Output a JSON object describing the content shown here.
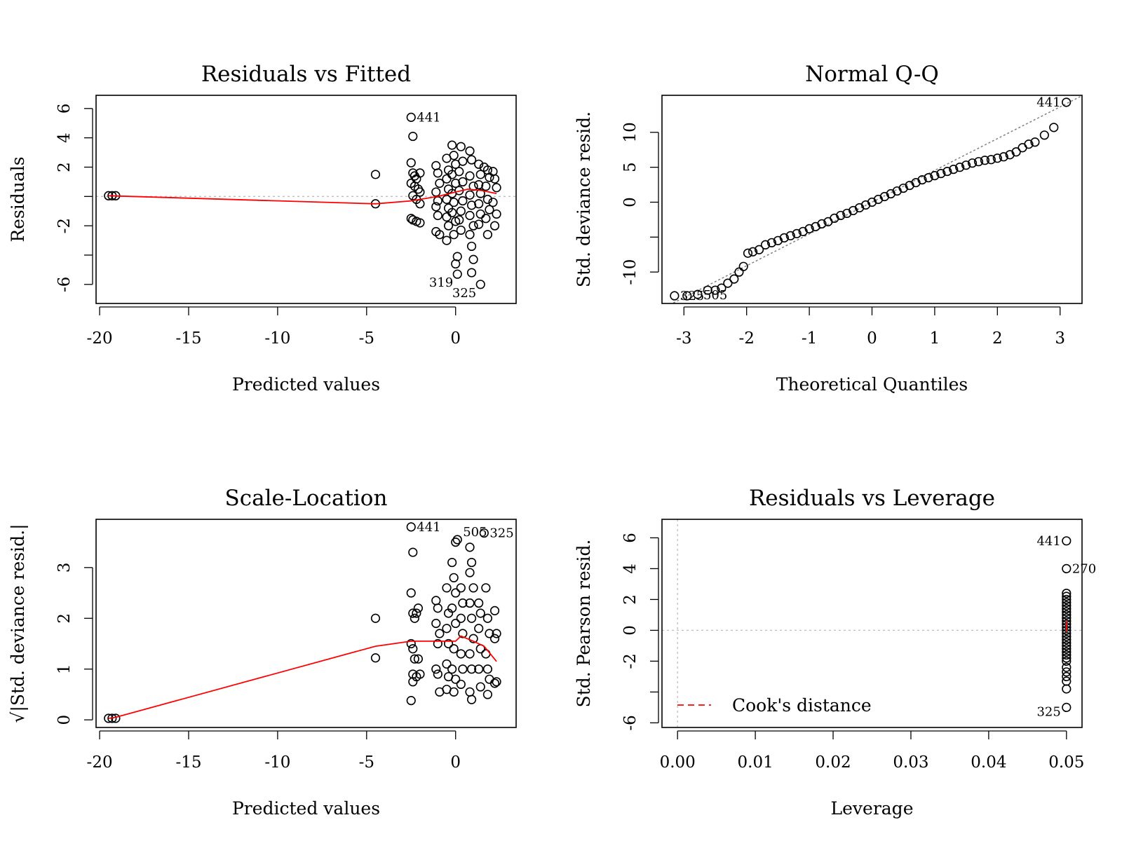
{
  "colors": {
    "point": "#000000",
    "smooth": "#ff0000",
    "reference": "#bebebe",
    "qqline": "#808080",
    "cook": "#ff0000"
  },
  "panels": [
    {
      "title": "Residuals vs Fitted",
      "xlabel": "Predicted values",
      "ylabel": "Residuals",
      "xticks": [
        -20,
        -15,
        -10,
        -5,
        0
      ],
      "yticks": [
        -6,
        -4,
        -2,
        0,
        2,
        4,
        6
      ],
      "yticklabels": [
        "-6",
        "",
        "-2",
        "",
        "2",
        "4",
        "6"
      ],
      "point_labels": [
        {
          "text": "441",
          "x": -2.5,
          "y": 5.4
        },
        {
          "text": "319",
          "x": 0.1,
          "y": -5.3
        },
        {
          "text": "325",
          "x": 1.4,
          "y": -6.0
        }
      ]
    },
    {
      "title": "Normal Q-Q",
      "xlabel": "Theoretical Quantiles",
      "ylabel": "Std. deviance resid.",
      "xticks": [
        -3,
        -2,
        -1,
        0,
        1,
        2,
        3
      ],
      "yticks": [
        -10,
        -5,
        0,
        5,
        10
      ],
      "yticklabels": [
        "-10",
        "",
        "0",
        "5",
        "10"
      ],
      "point_labels": [
        {
          "text": "441",
          "x": 3.1,
          "y": 14.3
        },
        {
          "text": "325",
          "x": -3.15,
          "y": -13.4
        },
        {
          "text": "505",
          "x": -2.78,
          "y": -13.3
        }
      ]
    },
    {
      "title": "Scale-Location",
      "xlabel": "Predicted values",
      "ylabel": "√|Std. deviance resid.|",
      "xticks": [
        -20,
        -15,
        -10,
        -5,
        0
      ],
      "yticks": [
        0,
        1,
        2,
        3
      ],
      "yticklabels": [
        "0",
        "1",
        "2",
        "3"
      ],
      "point_labels": [
        {
          "text": "441",
          "x": -2.5,
          "y": 3.8
        },
        {
          "text": "505",
          "x": 0.1,
          "y": 3.7
        },
        {
          "text": "325",
          "x": 1.6,
          "y": 3.68
        }
      ]
    },
    {
      "title": "Residuals vs Leverage",
      "xlabel": "Leverage",
      "ylabel": "Std. Pearson resid.",
      "xticks": [
        0.0,
        0.01,
        0.02,
        0.03,
        0.04,
        0.05
      ],
      "xticklabels": [
        "0.00",
        "0.01",
        "0.02",
        "0.03",
        "0.04",
        "0.05"
      ],
      "yticks": [
        -6,
        -4,
        -2,
        0,
        2,
        4,
        6
      ],
      "yticklabels": [
        "-6",
        "",
        "-2",
        "0",
        "2",
        "4",
        "6"
      ],
      "legend": "Cook's distance",
      "point_labels": [
        {
          "text": "441",
          "x": 0.05,
          "y": 5.8
        },
        {
          "text": "270",
          "x": 0.05,
          "y": 4.0
        },
        {
          "text": "325",
          "x": 0.05,
          "y": -5.0
        }
      ]
    }
  ],
  "chart_data": [
    {
      "type": "scatter",
      "title": "Residuals vs Fitted",
      "xlabel": "Predicted values",
      "ylabel": "Residuals",
      "xlim": [
        -20.2,
        3.4
      ],
      "ylim": [
        -7.3,
        6.9
      ],
      "reference_line_y": 0,
      "points": [
        [
          -19.5,
          0.05
        ],
        [
          -19.3,
          0.05
        ],
        [
          -19.1,
          0.05
        ],
        [
          -4.5,
          1.5
        ],
        [
          -4.5,
          -0.5
        ],
        [
          -2.5,
          5.4
        ],
        [
          -2.4,
          4.1
        ],
        [
          -2.5,
          2.3
        ],
        [
          -2.4,
          1.6
        ],
        [
          -2.3,
          1.4
        ],
        [
          -2.2,
          1.2
        ],
        [
          -2.0,
          1.6
        ],
        [
          -2.5,
          0.9
        ],
        [
          -2.3,
          0.7
        ],
        [
          -2.1,
          0.5
        ],
        [
          -2.0,
          0.3
        ],
        [
          -2.4,
          0.05
        ],
        [
          -2.2,
          -0.2
        ],
        [
          -2.0,
          -0.5
        ],
        [
          -2.5,
          -1.5
        ],
        [
          -2.4,
          -1.6
        ],
        [
          -2.2,
          -1.7
        ],
        [
          -2.0,
          -1.8
        ],
        [
          -1.1,
          2.1
        ],
        [
          -1.0,
          1.6
        ],
        [
          -0.9,
          0.9
        ],
        [
          -1.1,
          0.3
        ],
        [
          -1.0,
          -0.3
        ],
        [
          -1.1,
          -0.7
        ],
        [
          -1.0,
          -1.3
        ],
        [
          -1.1,
          -2.4
        ],
        [
          -0.9,
          -2.6
        ],
        [
          -0.5,
          2.6
        ],
        [
          -0.4,
          1.8
        ],
        [
          -0.5,
          1.2
        ],
        [
          -0.4,
          0.5
        ],
        [
          -0.5,
          -0.2
        ],
        [
          -0.4,
          -0.8
        ],
        [
          -0.5,
          -1.4
        ],
        [
          -0.4,
          -2.0
        ],
        [
          -0.5,
          -3.0
        ],
        [
          -0.2,
          3.5
        ],
        [
          -0.1,
          2.8
        ],
        [
          0.0,
          2.2
        ],
        [
          -0.2,
          1.5
        ],
        [
          0.0,
          0.9
        ],
        [
          -0.2,
          0.2
        ],
        [
          -0.1,
          -0.4
        ],
        [
          -0.2,
          -1.1
        ],
        [
          0.0,
          -1.7
        ],
        [
          -0.1,
          -2.6
        ],
        [
          0.1,
          -4.1
        ],
        [
          0.0,
          -4.6
        ],
        [
          0.1,
          -5.3
        ],
        [
          0.3,
          3.4
        ],
        [
          0.4,
          2.4
        ],
        [
          0.2,
          1.7
        ],
        [
          0.4,
          1.0
        ],
        [
          0.2,
          0.4
        ],
        [
          0.4,
          -0.3
        ],
        [
          0.3,
          -1.0
        ],
        [
          0.2,
          -1.6
        ],
        [
          0.3,
          -2.3
        ],
        [
          0.8,
          3.1
        ],
        [
          0.9,
          2.5
        ],
        [
          0.8,
          1.4
        ],
        [
          1.0,
          0.7
        ],
        [
          0.8,
          0.1
        ],
        [
          0.9,
          -0.6
        ],
        [
          0.8,
          -1.3
        ],
        [
          1.0,
          -2.0
        ],
        [
          0.8,
          -2.6
        ],
        [
          0.9,
          -3.4
        ],
        [
          1.0,
          -4.3
        ],
        [
          0.9,
          -5.2
        ],
        [
          1.3,
          2.2
        ],
        [
          1.4,
          1.5
        ],
        [
          1.3,
          0.8
        ],
        [
          1.4,
          0.2
        ],
        [
          1.3,
          -0.5
        ],
        [
          1.4,
          -1.2
        ],
        [
          1.3,
          -1.9
        ],
        [
          1.4,
          -6.0
        ],
        [
          1.6,
          2.0
        ],
        [
          1.8,
          1.8
        ],
        [
          1.9,
          1.3
        ],
        [
          1.7,
          0.7
        ],
        [
          1.8,
          -0.2
        ],
        [
          1.9,
          -0.9
        ],
        [
          1.7,
          -1.5
        ],
        [
          1.8,
          -2.6
        ],
        [
          2.1,
          1.7
        ],
        [
          2.2,
          1.2
        ],
        [
          2.3,
          0.6
        ],
        [
          2.1,
          -0.4
        ],
        [
          2.3,
          -1.2
        ],
        [
          2.2,
          -2.0
        ]
      ],
      "smooth_line": [
        [
          -19.5,
          0.05
        ],
        [
          -4.5,
          -0.5
        ],
        [
          -2.5,
          -0.3
        ],
        [
          -1.0,
          0.0
        ],
        [
          0.0,
          0.3
        ],
        [
          0.7,
          0.5
        ],
        [
          1.5,
          0.4
        ],
        [
          2.3,
          0.2
        ]
      ]
    },
    {
      "type": "scatter",
      "title": "Normal Q-Q",
      "xlabel": "Theoretical Quantiles",
      "ylabel": "Std. deviance resid.",
      "xlim": [
        -3.35,
        3.35
      ],
      "ylim": [
        -14.5,
        15.3
      ],
      "qq_line": {
        "intercept": 0.0,
        "slope": 4.55
      },
      "points": [
        [
          -3.15,
          -13.4
        ],
        [
          -2.95,
          -13.4
        ],
        [
          -2.78,
          -13.2
        ],
        [
          -2.62,
          -12.6
        ],
        [
          -2.5,
          -12.6
        ],
        [
          -2.4,
          -12.3
        ],
        [
          -2.3,
          -11.6
        ],
        [
          -2.2,
          -11.0
        ],
        [
          -2.12,
          -10.0
        ],
        [
          -2.05,
          -9.2
        ],
        [
          -1.98,
          -7.3
        ],
        [
          -1.9,
          -7.1
        ],
        [
          -1.8,
          -6.8
        ],
        [
          -1.7,
          -6.1
        ],
        [
          -1.6,
          -5.8
        ],
        [
          -1.5,
          -5.5
        ],
        [
          -1.4,
          -5.1
        ],
        [
          -1.3,
          -4.8
        ],
        [
          -1.2,
          -4.5
        ],
        [
          -1.1,
          -4.2
        ],
        [
          -1.0,
          -3.8
        ],
        [
          -0.9,
          -3.5
        ],
        [
          -0.8,
          -3.1
        ],
        [
          -0.7,
          -2.8
        ],
        [
          -0.6,
          -2.3
        ],
        [
          -0.5,
          -1.9
        ],
        [
          -0.4,
          -1.6
        ],
        [
          -0.3,
          -1.2
        ],
        [
          -0.2,
          -0.8
        ],
        [
          -0.1,
          -0.4
        ],
        [
          0.0,
          0.0
        ],
        [
          0.1,
          0.4
        ],
        [
          0.2,
          0.8
        ],
        [
          0.3,
          1.2
        ],
        [
          0.4,
          1.6
        ],
        [
          0.5,
          2.0
        ],
        [
          0.6,
          2.4
        ],
        [
          0.7,
          2.8
        ],
        [
          0.8,
          3.2
        ],
        [
          0.9,
          3.5
        ],
        [
          1.0,
          3.8
        ],
        [
          1.1,
          4.1
        ],
        [
          1.2,
          4.4
        ],
        [
          1.3,
          4.7
        ],
        [
          1.4,
          5.0
        ],
        [
          1.5,
          5.3
        ],
        [
          1.6,
          5.6
        ],
        [
          1.7,
          5.8
        ],
        [
          1.8,
          6.0
        ],
        [
          1.9,
          6.1
        ],
        [
          2.0,
          6.3
        ],
        [
          2.1,
          6.5
        ],
        [
          2.2,
          6.8
        ],
        [
          2.3,
          7.2
        ],
        [
          2.4,
          7.8
        ],
        [
          2.5,
          8.3
        ],
        [
          2.6,
          8.6
        ],
        [
          2.75,
          9.6
        ],
        [
          2.9,
          10.7
        ],
        [
          3.1,
          14.3
        ]
      ]
    },
    {
      "type": "scatter",
      "title": "Scale-Location",
      "xlabel": "Predicted values",
      "ylabel": "√|Std. deviance resid.|",
      "xlim": [
        -20.2,
        3.4
      ],
      "ylim": [
        -0.15,
        3.95
      ],
      "points": [
        [
          -19.5,
          0.03
        ],
        [
          -19.3,
          0.03
        ],
        [
          -19.1,
          0.03
        ],
        [
          -4.5,
          2.0
        ],
        [
          -4.5,
          1.22
        ],
        [
          -2.5,
          3.8
        ],
        [
          -2.4,
          3.3
        ],
        [
          -2.5,
          2.5
        ],
        [
          -2.4,
          2.1
        ],
        [
          -2.3,
          2.0
        ],
        [
          -2.2,
          2.1
        ],
        [
          -2.1,
          2.2
        ],
        [
          -2.5,
          1.5
        ],
        [
          -2.4,
          1.4
        ],
        [
          -2.3,
          1.2
        ],
        [
          -2.1,
          1.2
        ],
        [
          -2.4,
          0.9
        ],
        [
          -2.2,
          0.85
        ],
        [
          -2.0,
          0.9
        ],
        [
          -2.4,
          0.75
        ],
        [
          -2.5,
          0.38
        ],
        [
          -1.1,
          2.35
        ],
        [
          -1.0,
          2.2
        ],
        [
          -1.1,
          1.9
        ],
        [
          -0.9,
          1.7
        ],
        [
          -1.0,
          1.5
        ],
        [
          -1.1,
          1.0
        ],
        [
          -1.0,
          0.9
        ],
        [
          -0.9,
          0.55
        ],
        [
          -0.5,
          2.6
        ],
        [
          -0.4,
          2.1
        ],
        [
          -0.5,
          1.8
        ],
        [
          -0.4,
          1.5
        ],
        [
          -0.5,
          1.1
        ],
        [
          -0.4,
          0.85
        ],
        [
          -0.5,
          0.6
        ],
        [
          -0.2,
          3.1
        ],
        [
          -0.1,
          2.8
        ],
        [
          0.0,
          2.5
        ],
        [
          -0.2,
          2.2
        ],
        [
          0.0,
          1.9
        ],
        [
          -0.1,
          1.4
        ],
        [
          -0.2,
          1.0
        ],
        [
          0.0,
          0.8
        ],
        [
          -0.1,
          0.55
        ],
        [
          0.1,
          3.55
        ],
        [
          0.0,
          3.5
        ],
        [
          0.3,
          2.6
        ],
        [
          0.4,
          2.3
        ],
        [
          0.3,
          2.0
        ],
        [
          0.4,
          1.7
        ],
        [
          0.3,
          1.3
        ],
        [
          0.4,
          1.0
        ],
        [
          0.3,
          0.7
        ],
        [
          0.8,
          3.4
        ],
        [
          0.9,
          3.1
        ],
        [
          0.8,
          2.9
        ],
        [
          1.0,
          2.6
        ],
        [
          0.8,
          2.3
        ],
        [
          0.9,
          2.0
        ],
        [
          1.0,
          1.6
        ],
        [
          0.8,
          1.3
        ],
        [
          0.9,
          1.0
        ],
        [
          0.8,
          0.55
        ],
        [
          0.9,
          0.4
        ],
        [
          1.3,
          2.3
        ],
        [
          1.4,
          2.1
        ],
        [
          1.3,
          1.8
        ],
        [
          1.4,
          1.4
        ],
        [
          1.3,
          1.0
        ],
        [
          1.4,
          0.65
        ],
        [
          1.6,
          3.68
        ],
        [
          1.7,
          2.6
        ],
        [
          1.8,
          2.0
        ],
        [
          1.9,
          1.7
        ],
        [
          1.7,
          1.3
        ],
        [
          1.8,
          1.0
        ],
        [
          1.9,
          0.8
        ],
        [
          1.8,
          0.5
        ],
        [
          2.2,
          2.15
        ],
        [
          2.3,
          1.7
        ],
        [
          2.2,
          1.6
        ],
        [
          2.3,
          0.75
        ],
        [
          2.2,
          0.72
        ]
      ],
      "smooth_line": [
        [
          -19.5,
          0.03
        ],
        [
          -19.1,
          0.05
        ],
        [
          -4.5,
          1.45
        ],
        [
          -2.5,
          1.55
        ],
        [
          -1.0,
          1.55
        ],
        [
          0.0,
          1.55
        ],
        [
          0.3,
          1.65
        ],
        [
          1.0,
          1.55
        ],
        [
          1.6,
          1.45
        ],
        [
          2.3,
          1.15
        ]
      ]
    },
    {
      "type": "scatter",
      "title": "Residuals vs Leverage",
      "xlabel": "Leverage",
      "ylabel": "Std. Pearson resid.",
      "xlim": [
        -0.002,
        0.052
      ],
      "ylim": [
        -6.3,
        7.2
      ],
      "reference_line_x": 0,
      "reference_line_y": 0,
      "points": [
        [
          0.05,
          5.8
        ],
        [
          0.05,
          4.0
        ],
        [
          0.05,
          2.4
        ],
        [
          0.05,
          2.2
        ],
        [
          0.05,
          2.0
        ],
        [
          0.05,
          1.8
        ],
        [
          0.05,
          1.6
        ],
        [
          0.05,
          1.4
        ],
        [
          0.05,
          1.2
        ],
        [
          0.05,
          1.0
        ],
        [
          0.05,
          0.8
        ],
        [
          0.05,
          0.6
        ],
        [
          0.05,
          0.4
        ],
        [
          0.05,
          0.2
        ],
        [
          0.05,
          0.0
        ],
        [
          0.05,
          -0.2
        ],
        [
          0.05,
          -0.4
        ],
        [
          0.05,
          -0.6
        ],
        [
          0.05,
          -0.8
        ],
        [
          0.05,
          -1.0
        ],
        [
          0.05,
          -1.2
        ],
        [
          0.05,
          -1.4
        ],
        [
          0.05,
          -1.6
        ],
        [
          0.05,
          -1.8
        ],
        [
          0.05,
          -2.0
        ],
        [
          0.05,
          -2.4
        ],
        [
          0.05,
          -2.7
        ],
        [
          0.05,
          -3.0
        ],
        [
          0.05,
          -3.3
        ],
        [
          0.05,
          -3.8
        ],
        [
          0.05,
          -5.0
        ]
      ],
      "smooth_line": [
        [
          0.05,
          -0.1
        ],
        [
          0.05,
          0.6
        ]
      ],
      "legend": [
        {
          "label": "Cook's distance",
          "style": "dashed",
          "color": "#ff0000"
        }
      ]
    }
  ]
}
